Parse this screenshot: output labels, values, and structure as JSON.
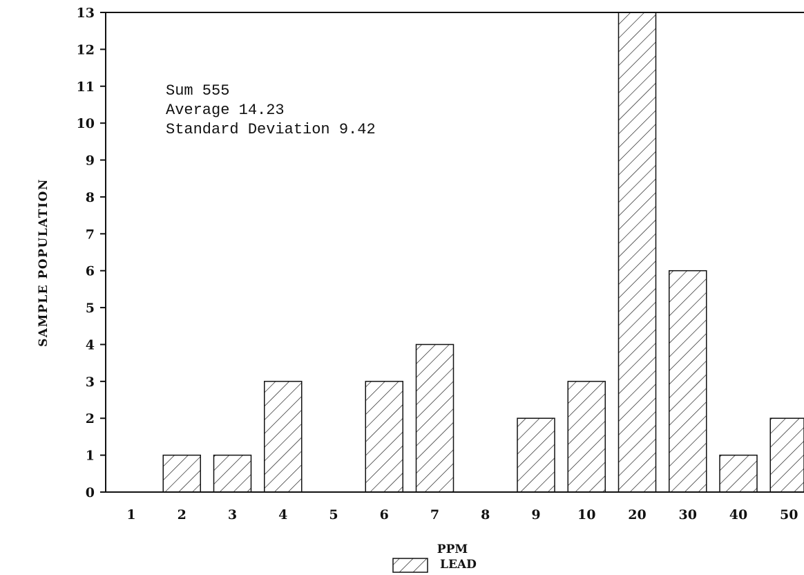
{
  "chart_data": {
    "type": "bar",
    "title": "",
    "xlabel": "PPM",
    "ylabel": "SAMPLE POPULATION",
    "categories": [
      "1",
      "2",
      "3",
      "4",
      "5",
      "6",
      "7",
      "8",
      "9",
      "10",
      "20",
      "30",
      "40",
      "50"
    ],
    "series": [
      {
        "name": "LEAD",
        "values": [
          0,
          1,
          1,
          3,
          0,
          3,
          4,
          0,
          2,
          3,
          13,
          6,
          1,
          2
        ]
      }
    ],
    "ylim": [
      0,
      13
    ],
    "yticks": [
      0,
      1,
      2,
      3,
      4,
      5,
      6,
      7,
      8,
      9,
      10,
      11,
      12,
      13
    ],
    "grid": false,
    "legend_position": "bottom-center",
    "bar_pattern": "diagonal-hatch",
    "annotations": [
      "Sum 555",
      "Average 14.23",
      "Standard Deviation 9.42"
    ]
  }
}
